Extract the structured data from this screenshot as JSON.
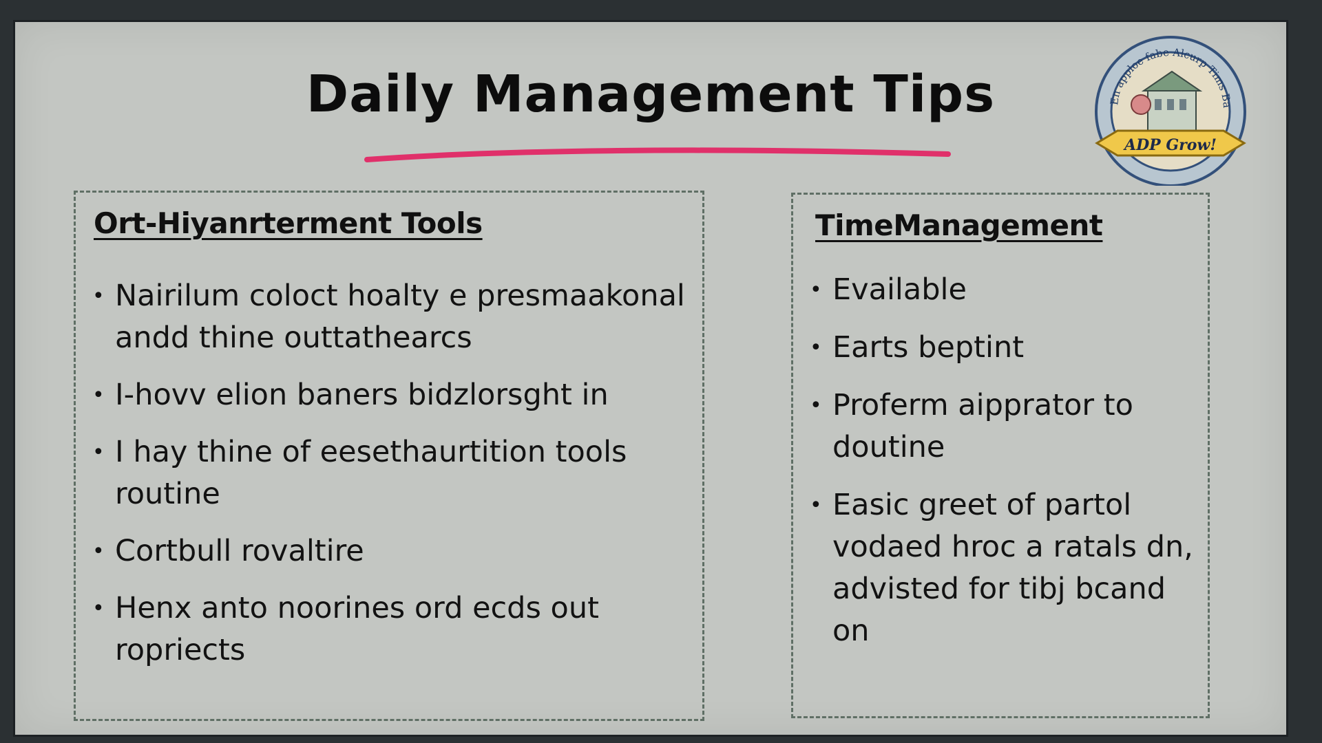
{
  "slide": {
    "title": "Daily Management Tips",
    "accent_color": "#e0306a",
    "background_color": "#c3c6c2"
  },
  "badge": {
    "arc_text": "En apploe fabe Alcurp Tims Bainurt",
    "ribbon_text": "ADP Grow!",
    "icon": "building-emblem-icon"
  },
  "left_panel": {
    "heading": "Ort-Hiyanrterment Tools",
    "items": [
      "Nairilum coloct hoalty e presmaakonal andd thine outtathearcs",
      "I-hovv elion baners bidzlorsght in",
      "I hay thine of eesethaurtition tools routine",
      "Cortbull rovaltire",
      "Henx anto noorines ord ecds out ropriects"
    ]
  },
  "right_panel": {
    "heading": "TimeManagement",
    "items": [
      "Evailable",
      "Earts beptint",
      "Proferm aipprator to doutine",
      "Easic greet of partol vodaed hroc a ratals dn, advisted for tibj bcand on"
    ]
  }
}
